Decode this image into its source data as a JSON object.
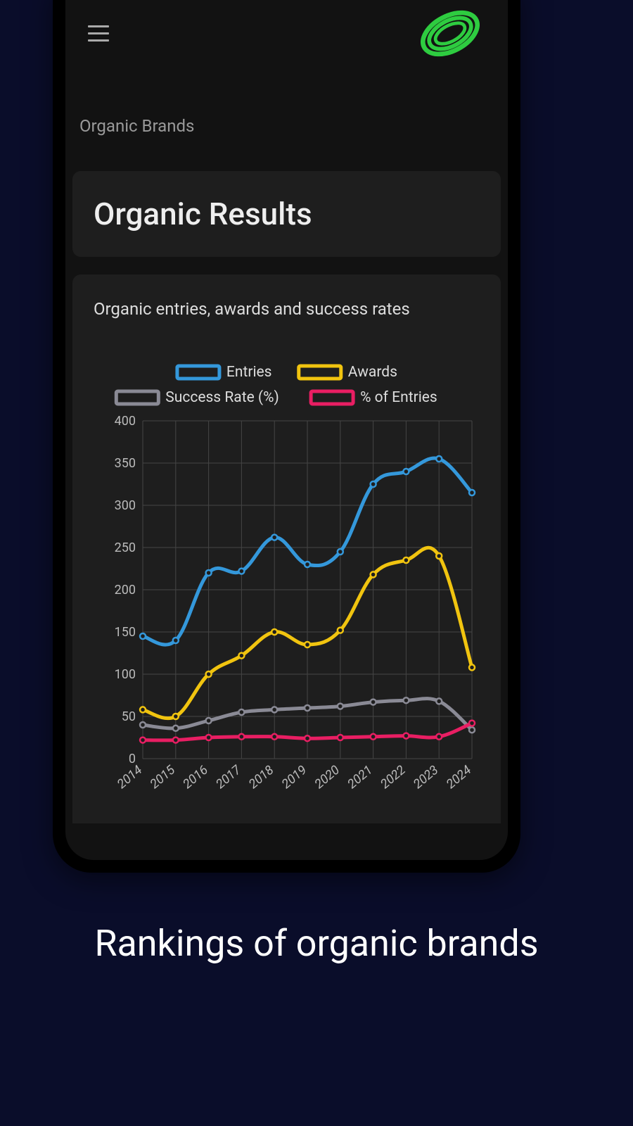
{
  "breadcrumb": "Organic Brands",
  "header_title": "Organic Results",
  "chart_title": "Organic entries, awards and success rates",
  "caption": "Rankings of organic brands",
  "chart": {
    "type": "line",
    "background_color": "#1e1e1e",
    "grid_color": "#454545",
    "axis_text_color": "#bbb",
    "legend_text_color": "#ddd",
    "axis_font_size": 18,
    "legend_font_size": 21,
    "x_labels": [
      "2014",
      "2015",
      "2016",
      "2017",
      "2018",
      "2019",
      "2020",
      "2021",
      "2022",
      "2023",
      "2024"
    ],
    "ylim": [
      0,
      400
    ],
    "ytick_step": 50,
    "line_width": 5,
    "marker_radius": 4,
    "series": [
      {
        "label": "Entries",
        "color": "#3498db",
        "values": [
          145,
          140,
          220,
          222,
          262,
          230,
          245,
          325,
          340,
          355,
          315
        ]
      },
      {
        "label": "Awards",
        "color": "#f1c40f",
        "values": [
          58,
          50,
          100,
          122,
          150,
          135,
          152,
          218,
          235,
          240,
          108
        ]
      },
      {
        "label": "Success Rate (%)",
        "color": "#8a8a95",
        "values": [
          40,
          36,
          45,
          55,
          58,
          60,
          62,
          67,
          69,
          68,
          34
        ]
      },
      {
        "label": "% of Entries",
        "color": "#e91e63",
        "values": [
          22,
          22,
          25,
          26,
          26,
          24,
          25,
          26,
          27,
          26,
          42
        ]
      }
    ]
  },
  "logo": {
    "color": "#2ecc40"
  }
}
